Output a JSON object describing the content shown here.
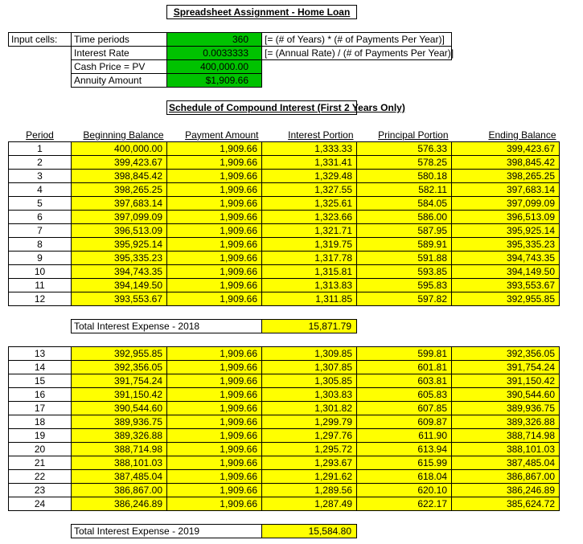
{
  "title": "Spreadsheet Assignment - Home Loan",
  "inputs": {
    "label": "Input cells:",
    "rows": [
      {
        "label": "Time periods",
        "value": "360",
        "note": "[= (# of Years) * (# of Payments Per Year)]"
      },
      {
        "label": "Interest Rate",
        "value": "0.0033333",
        "note": "[= (Annual Rate) / (# of Payments Per Year)]"
      },
      {
        "label": "Cash Price = PV",
        "value": "400,000.00",
        "note": ""
      },
      {
        "label": "Annuity Amount",
        "value": "$1,909.66",
        "note": ""
      }
    ]
  },
  "schedule": {
    "title": "Schedule of Compound Interest (First 2 Years Only)",
    "headers": [
      "Period",
      "Beginning Balance",
      "Payment Amount",
      "Interest Portion",
      "Principal Portion",
      "Ending Balance"
    ],
    "year1_rows": [
      [
        "1",
        "400,000.00",
        "1,909.66",
        "1,333.33",
        "576.33",
        "399,423.67"
      ],
      [
        "2",
        "399,423.67",
        "1,909.66",
        "1,331.41",
        "578.25",
        "398,845.42"
      ],
      [
        "3",
        "398,845.42",
        "1,909.66",
        "1,329.48",
        "580.18",
        "398,265.25"
      ],
      [
        "4",
        "398,265.25",
        "1,909.66",
        "1,327.55",
        "582.11",
        "397,683.14"
      ],
      [
        "5",
        "397,683.14",
        "1,909.66",
        "1,325.61",
        "584.05",
        "397,099.09"
      ],
      [
        "6",
        "397,099.09",
        "1,909.66",
        "1,323.66",
        "586.00",
        "396,513.09"
      ],
      [
        "7",
        "396,513.09",
        "1,909.66",
        "1,321.71",
        "587.95",
        "395,925.14"
      ],
      [
        "8",
        "395,925.14",
        "1,909.66",
        "1,319.75",
        "589.91",
        "395,335.23"
      ],
      [
        "9",
        "395,335.23",
        "1,909.66",
        "1,317.78",
        "591.88",
        "394,743.35"
      ],
      [
        "10",
        "394,743.35",
        "1,909.66",
        "1,315.81",
        "593.85",
        "394,149.50"
      ],
      [
        "11",
        "394,149.50",
        "1,909.66",
        "1,313.83",
        "595.83",
        "393,553.67"
      ],
      [
        "12",
        "393,553.67",
        "1,909.66",
        "1,311.85",
        "597.82",
        "392,955.85"
      ]
    ],
    "total_2018": {
      "label": "Total Interest Expense - 2018",
      "value": "15,871.79"
    },
    "year2_rows": [
      [
        "13",
        "392,955.85",
        "1,909.66",
        "1,309.85",
        "599.81",
        "392,356.05"
      ],
      [
        "14",
        "392,356.05",
        "1,909.66",
        "1,307.85",
        "601.81",
        "391,754.24"
      ],
      [
        "15",
        "391,754.24",
        "1,909.66",
        "1,305.85",
        "603.81",
        "391,150.42"
      ],
      [
        "16",
        "391,150.42",
        "1,909.66",
        "1,303.83",
        "605.83",
        "390,544.60"
      ],
      [
        "17",
        "390,544.60",
        "1,909.66",
        "1,301.82",
        "607.85",
        "389,936.75"
      ],
      [
        "18",
        "389,936.75",
        "1,909.66",
        "1,299.79",
        "609.87",
        "389,326.88"
      ],
      [
        "19",
        "389,326.88",
        "1,909.66",
        "1,297.76",
        "611.90",
        "388,714.98"
      ],
      [
        "20",
        "388,714.98",
        "1,909.66",
        "1,295.72",
        "613.94",
        "388,101.03"
      ],
      [
        "21",
        "388,101.03",
        "1,909.66",
        "1,293.67",
        "615.99",
        "387,485.04"
      ],
      [
        "22",
        "387,485.04",
        "1,909.66",
        "1,291.62",
        "618.04",
        "386,867.00"
      ],
      [
        "23",
        "386,867.00",
        "1,909.66",
        "1,289.56",
        "620.10",
        "386,246.89"
      ],
      [
        "24",
        "386,246.89",
        "1,909.66",
        "1,287.49",
        "622.17",
        "385,624.72"
      ]
    ],
    "total_2019": {
      "label": "Total Interest Expense - 2019",
      "value": "15,584.80"
    }
  },
  "colors": {
    "input_green": "#00C200",
    "highlight_yellow": "#FFFF00"
  }
}
